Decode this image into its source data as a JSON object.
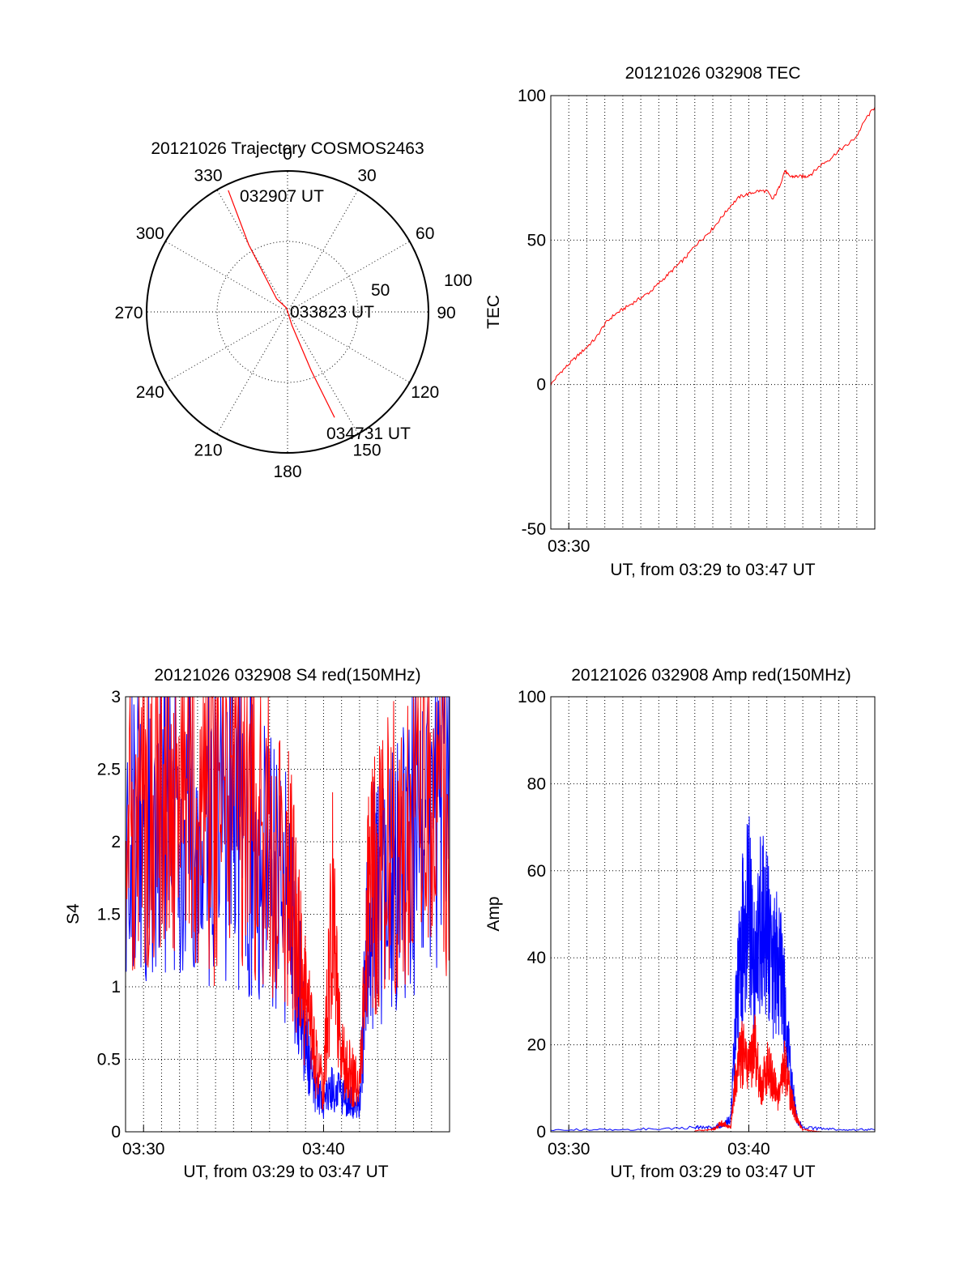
{
  "colors": {
    "red": "#ff0000",
    "blue": "#0000ff",
    "black": "#000000",
    "background": "#ffffff"
  },
  "chart_data": [
    {
      "type": "polar-trajectory",
      "title": "20121026 Trajectory COSMOS2463",
      "angular_ticks": [
        "0",
        "30",
        "60",
        "90",
        "120",
        "150",
        "180",
        "210",
        "240",
        "270",
        "300",
        "330"
      ],
      "radial_tick_labels": [
        "50",
        "100"
      ],
      "radial_range": [
        0,
        100
      ],
      "grid": true,
      "series": [
        {
          "color": "#ff0000",
          "points": [
            {
              "azimuth": 334,
              "distance": 96,
              "label": "032907 UT"
            },
            {
              "azimuth": 330,
              "distance": 55
            },
            {
              "azimuth": 320,
              "distance": 12
            },
            {
              "azimuth": 345,
              "distance": 3,
              "label": "033823 UT"
            },
            {
              "azimuth": 162,
              "distance": 10
            },
            {
              "azimuth": 158,
              "distance": 45
            },
            {
              "azimuth": 156,
              "distance": 82,
              "label": "034731 UT"
            }
          ]
        }
      ]
    },
    {
      "type": "line",
      "title": "20121026 032908 TEC",
      "xlabel": "UT, from 03:29 to 03:47 UT",
      "ylabel": "TEC",
      "xlim": [
        "03:29",
        "03:47"
      ],
      "ylim": [
        -50,
        100
      ],
      "yticks": [
        -50,
        0,
        50,
        100
      ],
      "xtick_labels": [
        "03:30"
      ],
      "grid": true,
      "series": [
        {
          "color": "#ff0000",
          "x": [
            "03:29:00",
            "03:29:30",
            "03:30:00",
            "03:30:30",
            "03:31:00",
            "03:31:30",
            "03:32:00",
            "03:32:30",
            "03:33:00",
            "03:33:30",
            "03:34:00",
            "03:34:30",
            "03:35:00",
            "03:35:30",
            "03:36:00",
            "03:36:30",
            "03:37:00",
            "03:37:30",
            "03:38:00",
            "03:38:30",
            "03:39:00",
            "03:39:30",
            "03:40:00",
            "03:40:30",
            "03:41:00",
            "03:41:20",
            "03:41:40",
            "03:42:00",
            "03:42:15",
            "03:42:30",
            "03:42:50",
            "03:43:10",
            "03:43:30",
            "03:44:00",
            "03:44:30",
            "03:45:00",
            "03:45:30",
            "03:46:00",
            "03:46:30",
            "03:47:00"
          ],
          "y": [
            0,
            4,
            7,
            10,
            13,
            16,
            21,
            24,
            26,
            28,
            30,
            32,
            35,
            38,
            41,
            44,
            48,
            51,
            54,
            58,
            62,
            65,
            66,
            67,
            67,
            64,
            68,
            74,
            72,
            72,
            72,
            72,
            73,
            76,
            78,
            81,
            83,
            86,
            92,
            96
          ]
        }
      ]
    },
    {
      "type": "line",
      "title": "20121026 032908 S4 red(150MHz)",
      "xlabel": "UT, from 03:29 to 03:47 UT",
      "ylabel": "S4",
      "xlim": [
        "03:29",
        "03:47"
      ],
      "ylim": [
        0,
        3
      ],
      "yticks": [
        "0",
        "0.5",
        "1",
        "1.5",
        "2",
        "2.5",
        "3"
      ],
      "xtick_labels": [
        "03:30",
        "03:40"
      ],
      "grid": true,
      "series": [
        {
          "color": "#0000ff",
          "x": [
            "03:29:00",
            "03:30:00",
            "03:31:00",
            "03:32:00",
            "03:33:00",
            "03:34:00",
            "03:35:00",
            "03:36:00",
            "03:37:00",
            "03:38:00",
            "03:38:30",
            "03:39:00",
            "03:39:30",
            "03:40:00",
            "03:40:30",
            "03:41:00",
            "03:41:30",
            "03:42:00",
            "03:42:30",
            "03:43:00",
            "03:44:00",
            "03:45:00",
            "03:46:00",
            "03:47:00"
          ],
          "y": [
            2.3,
            2.2,
            2.3,
            2.2,
            2.2,
            2.1,
            2.2,
            2.0,
            1.8,
            1.6,
            1.2,
            0.6,
            0.3,
            0.2,
            0.3,
            0.25,
            0.2,
            0.2,
            1.5,
            1.6,
            1.8,
            2.0,
            2.2,
            2.4
          ]
        },
        {
          "color": "#ff0000",
          "x": [
            "03:29:00",
            "03:30:00",
            "03:31:00",
            "03:32:00",
            "03:33:00",
            "03:34:00",
            "03:35:00",
            "03:36:00",
            "03:37:00",
            "03:38:00",
            "03:38:30",
            "03:39:00",
            "03:39:30",
            "03:40:00",
            "03:40:30",
            "03:41:00",
            "03:41:30",
            "03:42:00",
            "03:42:30",
            "03:43:00",
            "03:44:00",
            "03:45:00",
            "03:46:00",
            "03:47:00"
          ],
          "y": [
            2.4,
            2.3,
            2.4,
            2.3,
            2.3,
            2.2,
            2.3,
            2.2,
            2.0,
            1.8,
            1.4,
            0.9,
            0.5,
            0.3,
            1.6,
            0.5,
            0.4,
            0.3,
            1.6,
            1.8,
            2.0,
            2.2,
            2.3,
            2.4
          ]
        }
      ]
    },
    {
      "type": "line",
      "title": "20121026 032908 Amp red(150MHz)",
      "xlabel": "UT, from 03:29 to 03:47 UT",
      "ylabel": "Amp",
      "xlim": [
        "03:29",
        "03:47"
      ],
      "ylim": [
        0,
        100
      ],
      "yticks": [
        0,
        20,
        40,
        60,
        80,
        100
      ],
      "xtick_labels": [
        "03:30",
        "03:40"
      ],
      "grid": true,
      "series": [
        {
          "color": "#0000ff",
          "x": [
            "03:29:00",
            "03:33:00",
            "03:37:00",
            "03:38:00",
            "03:38:30",
            "03:39:00",
            "03:39:20",
            "03:39:40",
            "03:40:00",
            "03:40:20",
            "03:40:40",
            "03:41:00",
            "03:41:20",
            "03:41:40",
            "03:42:00",
            "03:42:20",
            "03:42:40",
            "03:43:00",
            "03:45:00",
            "03:47:00"
          ],
          "y": [
            0.5,
            0.5,
            1,
            1,
            1.5,
            3,
            30,
            45,
            52,
            35,
            50,
            45,
            38,
            40,
            28,
            12,
            3,
            1,
            0.5,
            0.5
          ]
        },
        {
          "color": "#ff0000",
          "x": [
            "03:37:00",
            "03:38:00",
            "03:38:30",
            "03:39:00",
            "03:39:20",
            "03:39:40",
            "03:40:00",
            "03:40:20",
            "03:40:40",
            "03:41:00",
            "03:41:20",
            "03:41:40",
            "03:42:00",
            "03:42:20",
            "03:42:40",
            "03:43:00",
            "03:44:00"
          ],
          "y": [
            0.3,
            0.5,
            2,
            1,
            15,
            18,
            14,
            20,
            10,
            15,
            12,
            8,
            15,
            8,
            3,
            0.5,
            0
          ]
        }
      ]
    }
  ]
}
